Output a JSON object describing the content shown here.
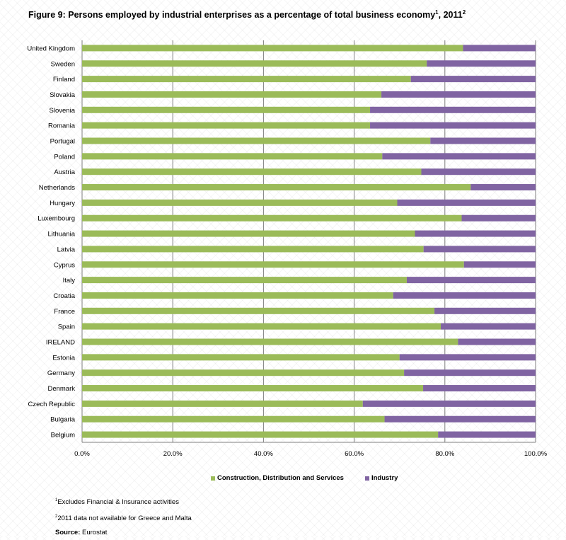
{
  "title": {
    "text": "Figure 9: Persons employed by industrial enterprises as a percentage of total business economy",
    "sup1": "1",
    "year": ", 2011",
    "sup2": "2"
  },
  "colors": {
    "services": "#9bbb59",
    "industry": "#8064a2",
    "grid": "#7f7f7f"
  },
  "chart_data": {
    "type": "bar",
    "orientation": "horizontal",
    "stacked": true,
    "categories": [
      "United Kingdom",
      "Sweden",
      "Finland",
      "Slovakia",
      "Slovenia",
      "Romania",
      "Portugal",
      "Poland",
      "Austria",
      "Netherlands",
      "Hungary",
      "Luxembourg",
      "Lithuania",
      "Latvia",
      "Cyprus",
      "Italy",
      "Croatia",
      "France",
      "Spain",
      "IRELAND",
      "Estonia",
      "Germany",
      "Denmark",
      "Czech Republic",
      "Bulgaria",
      "Belgium"
    ],
    "series": [
      {
        "name": "Construction, Distribution and Services",
        "values": [
          84.0,
          76.0,
          72.5,
          66.0,
          63.5,
          63.5,
          76.8,
          66.2,
          74.8,
          85.7,
          69.5,
          83.7,
          73.4,
          75.3,
          84.2,
          71.6,
          68.6,
          77.7,
          79.1,
          82.9,
          70.0,
          71.0,
          75.2,
          61.9,
          66.7,
          78.5
        ]
      },
      {
        "name": "Industry",
        "values": [
          16.0,
          24.0,
          27.5,
          34.0,
          36.5,
          36.5,
          23.2,
          33.8,
          25.2,
          14.3,
          30.5,
          16.3,
          26.6,
          24.7,
          15.8,
          28.4,
          31.4,
          22.3,
          20.9,
          17.1,
          30.0,
          29.0,
          24.8,
          38.1,
          33.3,
          21.5
        ]
      }
    ],
    "xlim": [
      0,
      100
    ],
    "ticks": [
      "0.0%",
      "20.0%",
      "40.0%",
      "60.0%",
      "80.0%",
      "100.0%"
    ],
    "grid": true,
    "legend_position": "bottom"
  },
  "footnotes": {
    "note1_sup": "1",
    "note1": "Excludes Financial & Insurance activities",
    "note2_sup": "2",
    "note2": "2011 data not available for Greece and Malta",
    "source_label": "Source:",
    "source": " Eurostat"
  }
}
